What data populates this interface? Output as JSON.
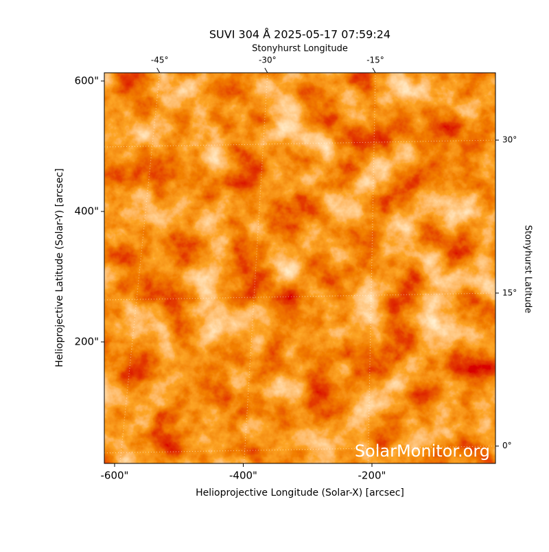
{
  "chart_data": {
    "type": "image",
    "title": "SUVI 304 Å 2025-05-17 07:59:24",
    "xlabel": "Helioprojective Longitude (Solar-X) [arcsec]",
    "ylabel": "Helioprojective Latitude (Solar-Y) [arcsec]",
    "x2label": "Stonyhurst Longitude",
    "y2label": "Stonyhurst Latitude",
    "watermark": "SolarMonitor.org",
    "xlim": [
      -616,
      -8
    ],
    "ylim": [
      13.7,
      612.6
    ],
    "xticks": [
      {
        "value": -600,
        "label": "-600\""
      },
      {
        "value": -400,
        "label": "-400\""
      },
      {
        "value": -200,
        "label": "-200\""
      }
    ],
    "yticks": [
      {
        "value": 200,
        "label": "200\""
      },
      {
        "value": 400,
        "label": "400\""
      },
      {
        "value": 600,
        "label": "600\""
      }
    ],
    "x2lim": [
      -52.7,
      1.7
    ],
    "x2ticks": [
      {
        "value": -45,
        "label": "-45°"
      },
      {
        "value": -30,
        "label": "-30°"
      },
      {
        "value": -15,
        "label": "-15°"
      }
    ],
    "y2lim": [
      -1.7,
      36.6
    ],
    "y2ticks": [
      {
        "value": 0,
        "label": "0°"
      },
      {
        "value": 15,
        "label": "15°"
      },
      {
        "value": 30,
        "label": "30°"
      }
    ],
    "grid": true
  }
}
